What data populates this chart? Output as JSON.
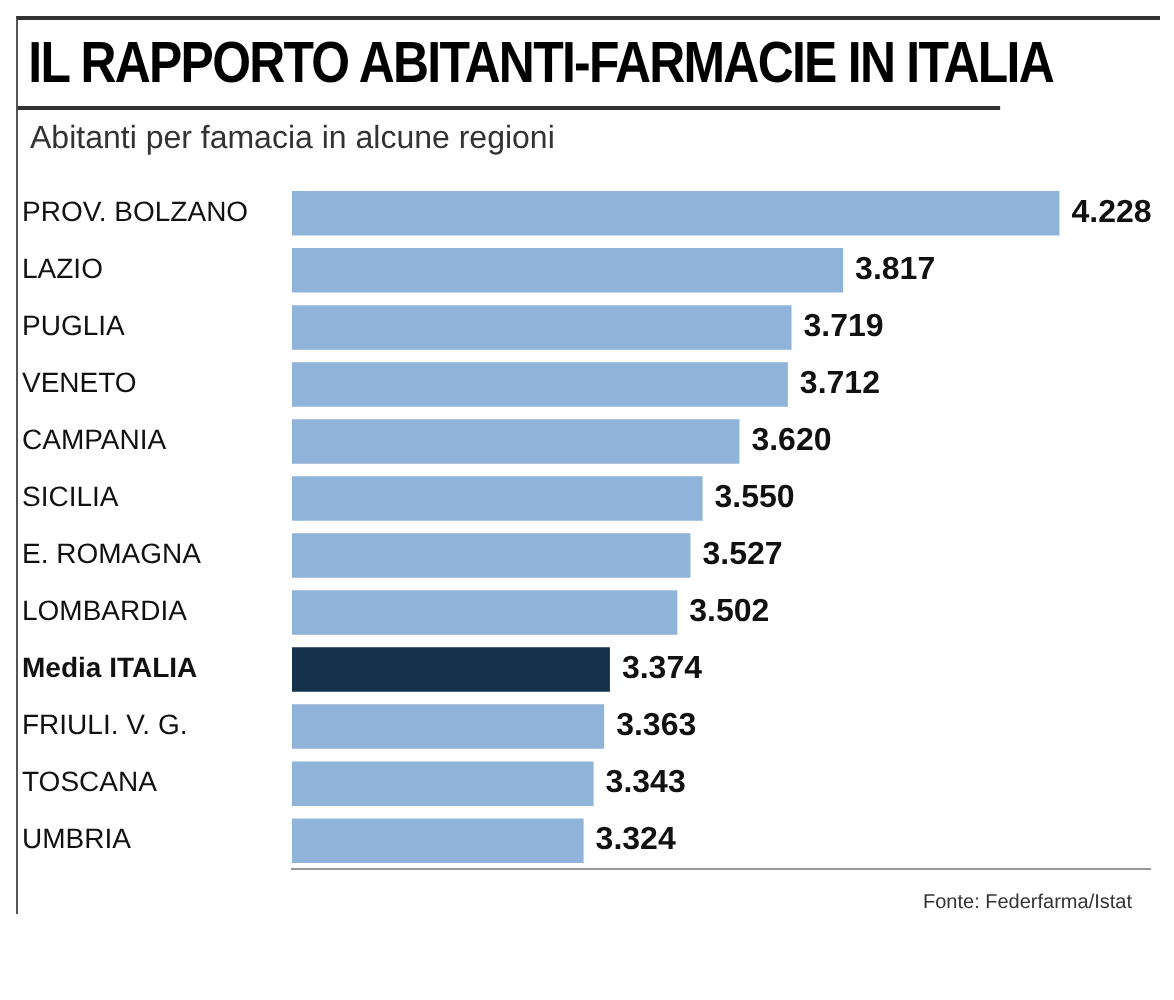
{
  "chart_data": {
    "type": "bar",
    "orientation": "horizontal",
    "title": "IL RAPPORTO ABITANTI-FARMACIE IN ITALIA",
    "subtitle": "Abitanti per famacia in alcune regioni",
    "categories": [
      "PROV. BOLZANO",
      "LAZIO",
      "PUGLIA",
      "VENETO",
      "CAMPANIA",
      "SICILIA",
      "E. ROMAGNA",
      "LOMBARDIA",
      "Media ITALIA",
      "FRIULI. V. G.",
      "TOSCANA",
      "UMBRIA"
    ],
    "values": [
      4228,
      3817,
      3719,
      3712,
      3620,
      3550,
      3527,
      3502,
      3374,
      3363,
      3343,
      3324
    ],
    "value_labels": [
      "4.228",
      "3.817",
      "3.719",
      "3.712",
      "3.620",
      "3.550",
      "3.527",
      "3.502",
      "3.374",
      "3.363",
      "3.343",
      "3.324"
    ],
    "colors": [
      "#8fb3d9",
      "#8fb3d9",
      "#8fb3d9",
      "#8fb3d9",
      "#8fb3d9",
      "#8fb3d9",
      "#8fb3d9",
      "#8fb3d9",
      "#16324a",
      "#8fb3d9",
      "#8fb3d9",
      "#8fb3d9"
    ],
    "xlim": [
      2770,
      4400
    ],
    "annotations": [
      "Fonte: Federfarma/Istat"
    ]
  }
}
